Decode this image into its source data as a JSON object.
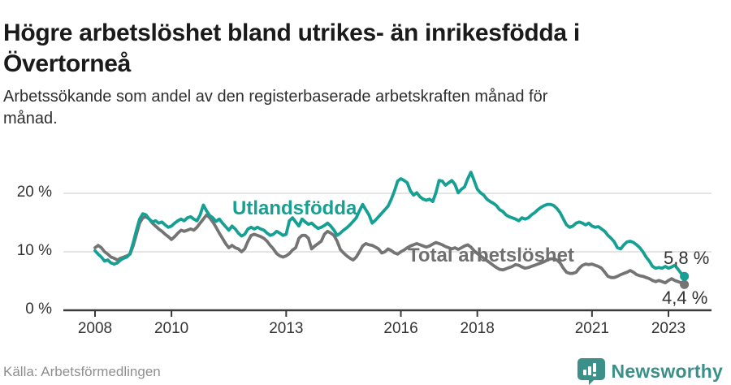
{
  "title": {
    "full": "Högre arbetslöshet bland utrikes- än inrikesfödda i Övertorneå",
    "lines": [
      "Högre arbetslöshet bland utrikes- än inrikesfödda i",
      "Övertorneå"
    ]
  },
  "subtitle": {
    "full": "Arbetssökande som andel av den registerbaserade arbetskraften månad för månad.",
    "lines": [
      "Arbetssökande som andel av den registerbaserade arbetskraften månad för",
      "månad."
    ]
  },
  "source": "Källa: Arbetsförmedlingen",
  "brand": {
    "name": "Newsworthy"
  },
  "colors": {
    "teal_line": "#16a094",
    "gray_line": "#747474",
    "gray_label": "#6f6f6f",
    "grid": "#dcdcdc",
    "axis": "#3a3a3a",
    "title_text": "#1a1a1a",
    "tick_text": "#333333",
    "source_text": "#8f8f8f",
    "logo": "#3b9189"
  },
  "chart_data": {
    "type": "line",
    "title": "Högre arbetslöshet bland utrikes- än inrikesfödda i Övertorneå",
    "subtitle": "Arbetssökande som andel av den registerbaserade arbetskraften månad för månad.",
    "frequency": "monthly",
    "x_start": "2008-01",
    "x_end": "2023-06",
    "ylim": [
      0,
      25
    ],
    "grid": "horizontal",
    "legend": "inline-labels",
    "yticks": [
      {
        "label": "0 %",
        "value": 0
      },
      {
        "label": "10 %",
        "value": 10
      },
      {
        "label": "20 %",
        "value": 20
      }
    ],
    "xticks": [
      2008,
      2010,
      2013,
      2016,
      2018,
      2021,
      2023
    ],
    "series": [
      {
        "name": "Utlandsfödda",
        "color": "#16a094",
        "end_label": "5,8 %",
        "end_value": 5.8,
        "values": [
          10.2,
          9.6,
          9.1,
          8.4,
          8.6,
          8.1,
          7.9,
          8.1,
          8.6,
          8.9,
          9.1,
          9.7,
          11.6,
          13.7,
          15.6,
          16.5,
          16.3,
          15.6,
          15.1,
          15.3,
          14.9,
          15.1,
          14.6,
          14.2,
          14.4,
          14.9,
          15.3,
          15.6,
          15.3,
          15.8,
          16.0,
          15.6,
          15.3,
          16.3,
          18.0,
          17.0,
          16.2,
          15.8,
          15.2,
          15.6,
          14.9,
          14.3,
          13.7,
          14.4,
          13.9,
          13.2,
          12.7,
          13.0,
          13.9,
          14.2,
          13.9,
          14.2,
          13.9,
          13.7,
          13.2,
          12.8,
          13.0,
          13.5,
          13.2,
          12.8,
          13.0,
          15.3,
          15.8,
          15.1,
          14.4,
          15.6,
          15.1,
          14.7,
          14.9,
          14.4,
          14.0,
          14.2,
          14.5,
          14.9,
          14.4,
          13.7,
          12.8,
          13.2,
          13.7,
          14.1,
          14.6,
          15.2,
          15.8,
          17.0,
          18.1,
          17.2,
          16.3,
          14.9,
          15.4,
          16.0,
          16.6,
          17.2,
          17.8,
          19.0,
          20.4,
          22.1,
          22.5,
          22.2,
          21.8,
          20.4,
          19.7,
          20.1,
          19.4,
          19.0,
          18.8,
          19.0,
          18.6,
          20.1,
          22.2,
          22.1,
          21.4,
          21.8,
          22.2,
          21.5,
          20.1,
          20.7,
          21.1,
          22.5,
          23.6,
          22.2,
          20.7,
          20.1,
          19.7,
          19.0,
          18.6,
          18.3,
          17.9,
          17.2,
          16.9,
          16.3,
          16.0,
          15.8,
          15.6,
          15.3,
          15.8,
          15.6,
          15.8,
          16.3,
          16.7,
          17.2,
          17.6,
          17.9,
          18.1,
          18.1,
          17.9,
          17.4,
          16.7,
          15.6,
          14.6,
          14.2,
          14.4,
          14.9,
          15.1,
          14.9,
          14.6,
          14.9,
          14.4,
          14.2,
          14.3,
          13.9,
          13.5,
          12.8,
          12.3,
          11.7,
          10.7,
          10.5,
          11.2,
          11.7,
          11.8,
          11.6,
          11.2,
          10.7,
          10.0,
          9.1,
          8.4,
          7.5,
          7.2,
          7.3,
          7.2,
          7.5,
          7.2,
          7.4,
          7.7,
          7.0,
          6.3,
          5.8
        ]
      },
      {
        "name": "Total arbetslöshet",
        "color": "#747474",
        "end_label": "4,4 %",
        "end_value": 4.4,
        "values": [
          10.7,
          11.1,
          10.7,
          10.0,
          9.6,
          9.1,
          8.9,
          8.6,
          8.9,
          9.1,
          9.3,
          9.6,
          11.1,
          13.0,
          14.9,
          15.8,
          16.0,
          15.6,
          14.9,
          14.4,
          13.9,
          13.5,
          13.0,
          12.6,
          12.1,
          12.6,
          13.2,
          13.7,
          13.5,
          13.7,
          13.9,
          13.7,
          14.2,
          14.9,
          15.6,
          16.3,
          15.8,
          15.1,
          14.2,
          13.2,
          12.3,
          11.4,
          10.7,
          11.1,
          10.7,
          10.5,
          10.0,
          10.5,
          11.8,
          12.8,
          13.0,
          12.8,
          12.6,
          12.3,
          11.8,
          11.1,
          10.5,
          9.7,
          9.3,
          9.1,
          9.3,
          9.7,
          10.3,
          10.7,
          12.3,
          12.8,
          12.8,
          12.3,
          10.5,
          11.0,
          11.4,
          11.8,
          13.0,
          13.5,
          13.2,
          12.8,
          11.8,
          10.4,
          9.8,
          9.3,
          8.9,
          8.6,
          9.1,
          10.0,
          11.0,
          11.4,
          11.2,
          11.1,
          10.8,
          10.5,
          9.8,
          10.0,
          10.5,
          10.2,
          9.8,
          9.6,
          10.0,
          10.3,
          10.7,
          11.0,
          11.2,
          11.4,
          11.2,
          11.0,
          10.8,
          11.0,
          11.3,
          11.6,
          11.4,
          11.2,
          10.9,
          10.7,
          10.5,
          10.7,
          10.4,
          10.7,
          11.0,
          11.2,
          10.8,
          10.2,
          9.7,
          9.3,
          8.9,
          8.5,
          8.1,
          7.7,
          7.3,
          7.0,
          6.9,
          7.1,
          7.3,
          7.5,
          7.8,
          7.7,
          7.4,
          7.2,
          7.3,
          7.5,
          7.7,
          7.9,
          8.1,
          8.3,
          8.6,
          8.8,
          8.8,
          8.6,
          8.1,
          7.2,
          6.5,
          6.3,
          6.3,
          6.5,
          7.2,
          7.7,
          7.9,
          7.8,
          7.9,
          7.7,
          7.5,
          7.2,
          6.5,
          5.8,
          5.6,
          5.6,
          5.8,
          6.1,
          6.3,
          6.5,
          6.8,
          6.5,
          6.1,
          5.9,
          5.8,
          5.6,
          5.4,
          5.1,
          4.9,
          5.1,
          4.9,
          4.7,
          5.1,
          5.4,
          5.1,
          4.9,
          4.7,
          4.4
        ]
      }
    ]
  }
}
